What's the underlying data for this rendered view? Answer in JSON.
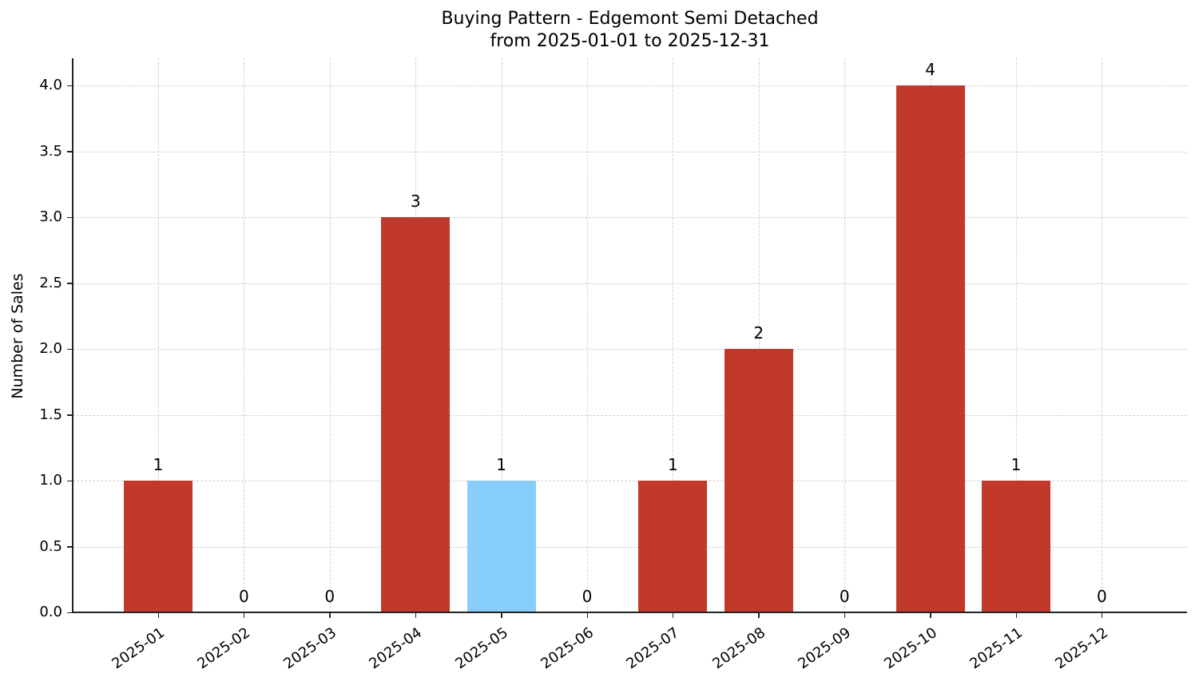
{
  "chart_data": {
    "type": "bar",
    "title": "Buying Pattern - Edgemont Semi Detached",
    "subtitle": "from 2025-01-01 to 2025-12-31",
    "xlabel": "",
    "ylabel": "Number of Sales",
    "categories": [
      "2025-01",
      "2025-02",
      "2025-03",
      "2025-04",
      "2025-05",
      "2025-06",
      "2025-07",
      "2025-08",
      "2025-09",
      "2025-10",
      "2025-11",
      "2025-12"
    ],
    "values": [
      1,
      0,
      0,
      3,
      1,
      0,
      1,
      2,
      0,
      4,
      1,
      0
    ],
    "bar_colors": [
      "#c0392b",
      "#c0392b",
      "#c0392b",
      "#c0392b",
      "#87cefa",
      "#c0392b",
      "#c0392b",
      "#c0392b",
      "#c0392b",
      "#c0392b",
      "#c0392b",
      "#c0392b"
    ],
    "highlight": {
      "category": "2025-05",
      "color": "#87cefa"
    },
    "default_color": "#c0392b",
    "ylim": [
      0,
      4.2
    ],
    "yticks": [
      "0.0",
      "0.5",
      "1.0",
      "1.5",
      "2.0",
      "2.5",
      "3.0",
      "3.5",
      "4.0"
    ],
    "grid": true,
    "data_labels": true,
    "legend": null
  }
}
